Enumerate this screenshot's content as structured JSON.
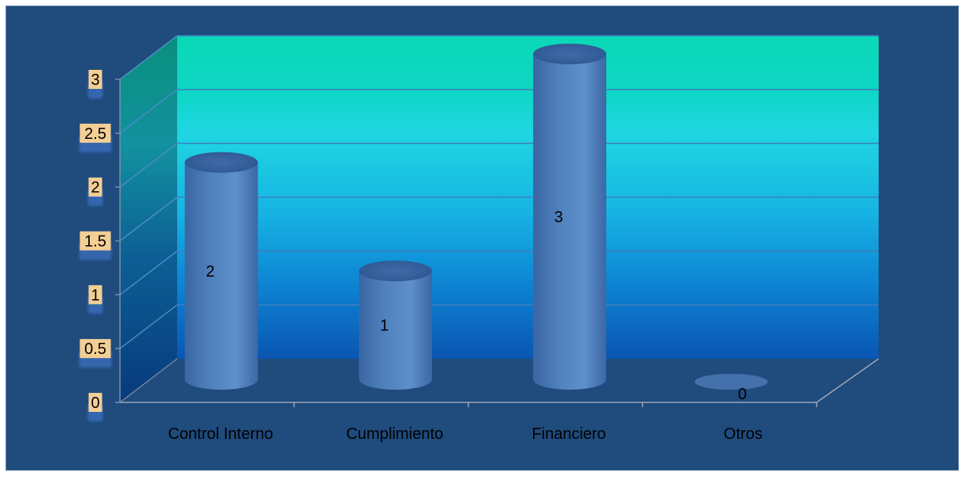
{
  "chart_data": {
    "type": "bar",
    "style": "3d-cylinder",
    "categories": [
      "Control Interno",
      "Cumplimiento",
      "Financiero",
      "Otros"
    ],
    "values": [
      2,
      1,
      3,
      0
    ],
    "data_labels": [
      "2",
      "1",
      "3",
      "0"
    ],
    "yticks": [
      "0",
      "0.5",
      "1",
      "1.5",
      "2",
      "2.5",
      "3"
    ],
    "ylim": [
      0,
      3
    ],
    "grid": true,
    "legend": false,
    "title": "",
    "xlabel": "",
    "ylabel": ""
  },
  "colors": {
    "frame_bg": "#1f4b7d",
    "wall_top": "#0ad8b6",
    "wall_mid": "#1fd6e2",
    "wall_bottom": "#0a56b2",
    "bar": "#4f81bd",
    "tick_label_bg": "#f3cf95"
  }
}
